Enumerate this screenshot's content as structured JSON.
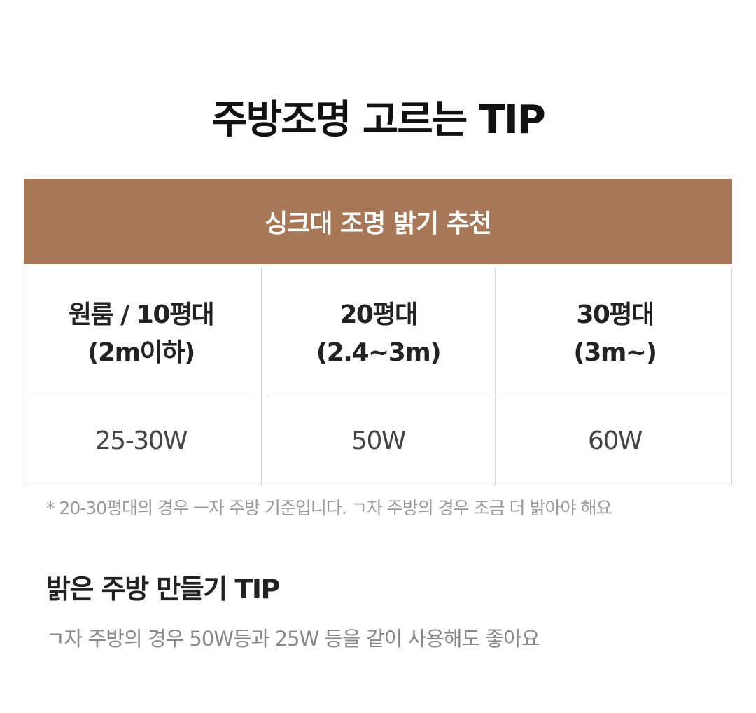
{
  "title": "주방조명 고르는 TIP",
  "banner": {
    "label": "싱크대 조명 밝기 추천",
    "color": "#a77757"
  },
  "cards": [
    {
      "line1": "원룸 / 10평대",
      "line2": "(2m이하)",
      "value": "25-30W"
    },
    {
      "line1": "20평대",
      "line2": "(2.4~3m)",
      "value": "50W"
    },
    {
      "line1": "30평대",
      "line2": "(3m~)",
      "value": "60W"
    }
  ],
  "note": "* 20-30평대의 경우 ㅡ자 주방 기준입니다. ㄱ자 주방의 경우 조금 더 밝아야 해요",
  "tip": {
    "title": "밝은 주방 만들기 TIP",
    "text": "ㄱ자 주방의 경우 50W등과 25W 등을 같이 사용해도 좋아요"
  }
}
